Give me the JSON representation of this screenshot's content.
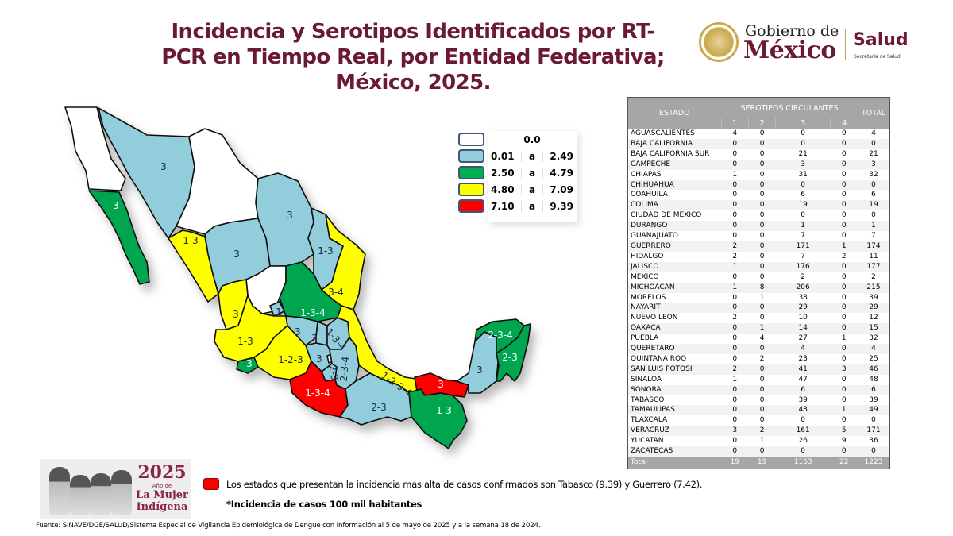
{
  "title": {
    "line1": "Incidencia y Serotipos Identificados por RT-",
    "line2": "PCR en Tiempo Real, por Entidad Federativa;",
    "line3": "México, 2025."
  },
  "logo": {
    "gobierno_line1": "Gobierno de",
    "gobierno_line2": "México",
    "salud": "Salud",
    "salud_sub": "Secretaría de Salud"
  },
  "legend": {
    "items": [
      {
        "color": "#ffffff",
        "from": "",
        "sep": "0.0",
        "to": ""
      },
      {
        "color": "#92cddc",
        "from": "0.01",
        "sep": "a",
        "to": "2.49"
      },
      {
        "color": "#00b050",
        "from": "2.50",
        "sep": "a",
        "to": "4.79"
      },
      {
        "color": "#ffff00",
        "from": "4.80",
        "sep": "a",
        "to": "7.09"
      },
      {
        "color": "#ff0000",
        "from": "7.10",
        "sep": "a",
        "to": "9.39"
      }
    ]
  },
  "map": {
    "colors": {
      "none": "#ffffff",
      "low": "#92cddc",
      "mid": "#00a650",
      "high": "#ffff00",
      "top": "#ff0000"
    },
    "labels": [
      {
        "state": "Baja California Sur",
        "text": "3"
      },
      {
        "state": "Sonora",
        "text": "3"
      },
      {
        "state": "Sinaloa",
        "text": "1-3"
      },
      {
        "state": "Durango",
        "text": "3"
      },
      {
        "state": "Coahuila",
        "text": "3"
      },
      {
        "state": "Nuevo Leon",
        "text": "1-3"
      },
      {
        "state": "Tamaulipas",
        "text": "3-4"
      },
      {
        "state": "San Luis Potosi",
        "text": "1-3-4"
      },
      {
        "state": "Aguascalientes",
        "text": "1"
      },
      {
        "state": "Nayarit",
        "text": "3"
      },
      {
        "state": "Jalisco",
        "text": "1-3"
      },
      {
        "state": "Colima",
        "text": "3"
      },
      {
        "state": "Michoacan",
        "text": "1-2-3"
      },
      {
        "state": "Guanajuato",
        "text": "3"
      },
      {
        "state": "Queretaro",
        "text": "3"
      },
      {
        "state": "Hidalgo",
        "text": "1-3-4"
      },
      {
        "state": "Mexico",
        "text": "3"
      },
      {
        "state": "Morelos",
        "text": "2-3"
      },
      {
        "state": "Puebla",
        "text": "2-3-4"
      },
      {
        "state": "Guerrero",
        "text": "1-3-4"
      },
      {
        "state": "Oaxaca",
        "text": "2-3"
      },
      {
        "state": "Veracruz",
        "text": "1-2-3-4"
      },
      {
        "state": "Tabasco",
        "text": "3"
      },
      {
        "state": "Chiapas",
        "text": "1-3"
      },
      {
        "state": "Campeche",
        "text": "3"
      },
      {
        "state": "Yucatan",
        "text": "2-3-4"
      },
      {
        "state": "Quintana Roo",
        "text": "2-3"
      }
    ]
  },
  "table": {
    "header_estado": "ESTADO",
    "header_serotipos": "SEROTIPOS CIRCULANTES",
    "header_total": "TOTAL",
    "serotype_cols": [
      "1",
      "2",
      "3",
      "4"
    ],
    "rows": [
      [
        "AGUASCALIENTES",
        "4",
        "0",
        "0",
        "0",
        "4"
      ],
      [
        "BAJA CALIFORNIA",
        "0",
        "0",
        "0",
        "0",
        "0"
      ],
      [
        "BAJA CALIFORNIA SUR",
        "0",
        "0",
        "21",
        "0",
        "21"
      ],
      [
        "CAMPECHE",
        "0",
        "0",
        "3",
        "0",
        "3"
      ],
      [
        "CHIAPAS",
        "1",
        "0",
        "31",
        "0",
        "32"
      ],
      [
        "CHIHUAHUA",
        "0",
        "0",
        "0",
        "0",
        "0"
      ],
      [
        "COAHUILA",
        "0",
        "0",
        "6",
        "0",
        "6"
      ],
      [
        "COLIMA",
        "0",
        "0",
        "19",
        "0",
        "19"
      ],
      [
        "CIUDAD DE MEXICO",
        "0",
        "0",
        "0",
        "0",
        "0"
      ],
      [
        "DURANGO",
        "0",
        "0",
        "1",
        "0",
        "1"
      ],
      [
        "GUANAJUATO",
        "0",
        "0",
        "7",
        "0",
        "7"
      ],
      [
        "GUERRERO",
        "2",
        "0",
        "171",
        "1",
        "174"
      ],
      [
        "HIDALGO",
        "2",
        "0",
        "7",
        "2",
        "11"
      ],
      [
        "JALISCO",
        "1",
        "0",
        "176",
        "0",
        "177"
      ],
      [
        "MEXICO",
        "0",
        "0",
        "2",
        "0",
        "2"
      ],
      [
        "MICHOACAN",
        "1",
        "8",
        "206",
        "0",
        "215"
      ],
      [
        "MORELOS",
        "0",
        "1",
        "38",
        "0",
        "39"
      ],
      [
        "NAYARIT",
        "0",
        "0",
        "29",
        "0",
        "29"
      ],
      [
        "NUEVO LEON",
        "2",
        "0",
        "10",
        "0",
        "12"
      ],
      [
        "OAXACA",
        "0",
        "1",
        "14",
        "0",
        "15"
      ],
      [
        "PUEBLA",
        "0",
        "4",
        "27",
        "1",
        "32"
      ],
      [
        "QUERETARO",
        "0",
        "0",
        "4",
        "0",
        "4"
      ],
      [
        "QUINTANA ROO",
        "0",
        "2",
        "23",
        "0",
        "25"
      ],
      [
        "SAN LUIS POTOSI",
        "2",
        "0",
        "41",
        "3",
        "46"
      ],
      [
        "SINALOA",
        "1",
        "0",
        "47",
        "0",
        "48"
      ],
      [
        "SONORA",
        "0",
        "0",
        "6",
        "0",
        "6"
      ],
      [
        "TABASCO",
        "0",
        "0",
        "39",
        "0",
        "39"
      ],
      [
        "TAMAULIPAS",
        "0",
        "0",
        "48",
        "1",
        "49"
      ],
      [
        "TLAXCALA",
        "0",
        "0",
        "0",
        "0",
        "0"
      ],
      [
        "VERACRUZ",
        "3",
        "2",
        "161",
        "5",
        "171"
      ],
      [
        "YUCATAN",
        "0",
        "1",
        "26",
        "9",
        "36"
      ],
      [
        "ZACATECAS",
        "0",
        "0",
        "0",
        "0",
        "0"
      ]
    ],
    "total_row": [
      "Total",
      "19",
      "19",
      "1163",
      "22",
      "1223"
    ]
  },
  "notes": {
    "highest": "Los estados que presentan la incidencia mas alta de casos confirmados son Tabasco (9.39) y Guerrero (7.42).",
    "incidence_unit": "*Incidencia de casos 100 mil habitantes",
    "highlight_color": "#ff0000"
  },
  "banner": {
    "year": "2025",
    "ano_de": "Año de",
    "line1": "La Mujer",
    "line2": "Indígena"
  },
  "source": "Fuente: SINAVE/DGE/SALUD/Sistema Especial de Vigilancia Epidemiológica de Dengue con Información al 5 de mayo de 2025 y a la semana 18 de 2024."
}
